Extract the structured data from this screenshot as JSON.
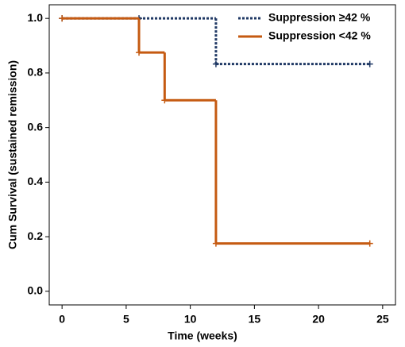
{
  "chart_data": {
    "type": "step",
    "x_label": "Time (weeks)",
    "y_label": "Cum Survival (sustained remission)",
    "xlim": [
      -1,
      26
    ],
    "ylim": [
      -0.05,
      1.05
    ],
    "xticks": [
      0,
      5,
      10,
      15,
      20,
      25
    ],
    "yticks": [
      {
        "value": 0,
        "label": "0.0"
      },
      0.2,
      0.4,
      0.6,
      0.8,
      {
        "value": 1,
        "label": "1.0"
      }
    ],
    "legend": "upper right",
    "series": [
      {
        "name": "Suppression ≥42 %",
        "color": "#1f3864",
        "style": "dotted",
        "x": [
          0,
          6,
          12,
          24
        ],
        "values": [
          1,
          1,
          0.833,
          0.833
        ]
      },
      {
        "name": "Suppression <42 %",
        "color": "#c55a11",
        "style": "solid",
        "x": [
          0,
          6,
          8,
          12,
          24
        ],
        "values": [
          1,
          0.875,
          0.7,
          0.175,
          0.175
        ]
      }
    ]
  }
}
